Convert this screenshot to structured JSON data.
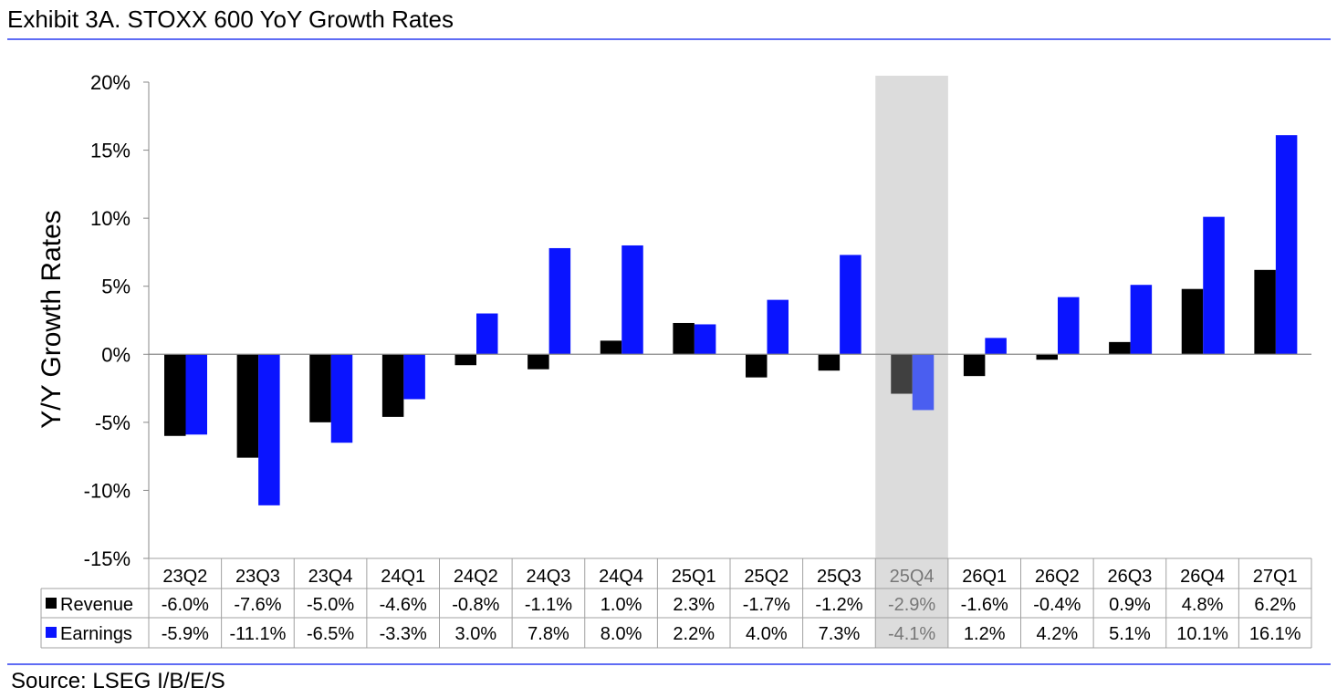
{
  "title": "Exhibit 3A.  STOXX 600 YoY Growth Rates",
  "source": "Source: LSEG I/B/E/S",
  "chart_data": {
    "type": "bar",
    "title": "Exhibit 3A.  STOXX 600 YoY Growth Rates",
    "ylabel": "Y/Y Growth Rates",
    "xlabel": "",
    "ylim": [
      -15,
      20
    ],
    "yticks": [
      20,
      15,
      10,
      5,
      0,
      -5,
      -10,
      -15
    ],
    "ytick_labels": [
      "20%",
      "15%",
      "10%",
      "5%",
      "0%",
      "-5%",
      "-10%",
      "-15%"
    ],
    "grid": false,
    "legend": "data table below chart",
    "highlighted_category": "25Q4",
    "categories": [
      "23Q2",
      "23Q3",
      "23Q4",
      "24Q1",
      "24Q2",
      "24Q3",
      "24Q4",
      "25Q1",
      "25Q2",
      "25Q3",
      "25Q4",
      "26Q1",
      "26Q2",
      "26Q3",
      "26Q4",
      "27Q1"
    ],
    "series": [
      {
        "name": "Revenue",
        "color": "#000000",
        "highlight_color": "#404040",
        "values": [
          -6.0,
          -7.6,
          -5.0,
          -4.6,
          -0.8,
          -1.1,
          1.0,
          2.3,
          -1.7,
          -1.2,
          -2.9,
          -1.6,
          -0.4,
          0.9,
          4.8,
          6.2
        ],
        "labels": [
          "-6.0%",
          "-7.6%",
          "-5.0%",
          "-4.6%",
          "-0.8%",
          "-1.1%",
          "1.0%",
          "2.3%",
          "-1.7%",
          "-1.2%",
          "-2.9%",
          "-1.6%",
          "-0.4%",
          "0.9%",
          "4.8%",
          "6.2%"
        ]
      },
      {
        "name": "Earnings",
        "color": "#0a14ff",
        "highlight_color": "#4a5ef0",
        "values": [
          -5.9,
          -11.1,
          -6.5,
          -3.3,
          3.0,
          7.8,
          8.0,
          2.2,
          4.0,
          7.3,
          -4.1,
          1.2,
          4.2,
          5.1,
          10.1,
          16.1
        ],
        "labels": [
          "-5.9%",
          "-11.1%",
          "-6.5%",
          "-3.3%",
          "3.0%",
          "7.8%",
          "8.0%",
          "2.2%",
          "4.0%",
          "7.3%",
          "-4.1%",
          "1.2%",
          "4.2%",
          "5.1%",
          "10.1%",
          "16.1%"
        ]
      }
    ]
  }
}
